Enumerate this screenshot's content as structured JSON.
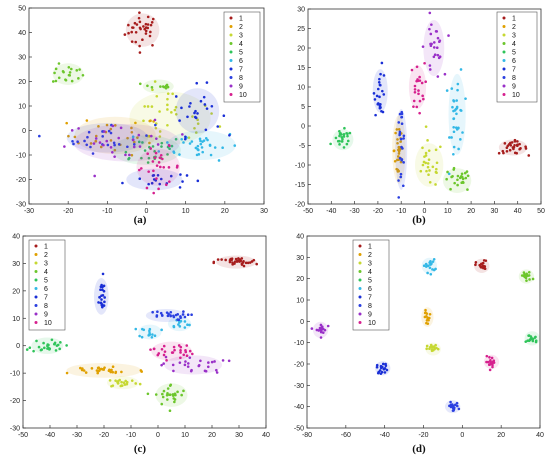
{
  "colors": {
    "1": "#a61c1c",
    "2": "#e0a000",
    "3": "#c6d832",
    "4": "#6cc62c",
    "5": "#2fc45a",
    "6": "#33b8e6",
    "7": "#1a2fd6",
    "8": "#2a3fe0",
    "9": "#9930c8",
    "10": "#d6208e"
  },
  "chart_data": [
    {
      "type": "scatter",
      "caption": "(a)",
      "xlim": [
        -30,
        30
      ],
      "ylim": [
        -30,
        50
      ],
      "xticks": [
        "-30",
        "-20",
        "-10",
        "0",
        "10",
        "20",
        "30"
      ],
      "yticks": [
        "-30",
        "-20",
        "-10",
        "0",
        "10",
        "20",
        "30",
        "40",
        "50"
      ],
      "legend": [
        "1",
        "2",
        "3",
        "4",
        "5",
        "6",
        "7",
        "8",
        "9",
        "10"
      ],
      "legend_position": "top-right",
      "series": [
        {
          "name": "1",
          "clusters": [
            {
              "cx": -1,
              "cy": 41,
              "sx": 2.2,
              "sy": 3.5,
              "n": 34
            }
          ]
        },
        {
          "name": "2",
          "clusters": [
            {
              "cx": -8,
              "cy": -2,
              "sx": 6,
              "sy": 4,
              "n": 30
            }
          ]
        },
        {
          "name": "3",
          "clusters": [
            {
              "cx": 6,
              "cy": 5,
              "sx": 6,
              "sy": 6,
              "n": 32
            }
          ]
        },
        {
          "name": "4",
          "clusters": [
            {
              "cx": -20,
              "cy": 23,
              "sx": 2,
              "sy": 2,
              "n": 20
            },
            {
              "cx": 3,
              "cy": 18,
              "sx": 2,
              "sy": 1,
              "n": 10
            }
          ]
        },
        {
          "name": "5",
          "clusters": [
            {
              "cx": 0,
              "cy": -8,
              "sx": 5,
              "sy": 3,
              "n": 24
            }
          ]
        },
        {
          "name": "6",
          "clusters": [
            {
              "cx": 14,
              "cy": -6,
              "sx": 5,
              "sy": 3,
              "n": 34
            }
          ]
        },
        {
          "name": "7",
          "clusters": [
            {
              "cx": 13,
              "cy": 8,
              "sx": 3,
              "sy": 5,
              "n": 24
            },
            {
              "cx": 2,
              "cy": -20,
              "sx": 4,
              "sy": 2,
              "n": 18
            }
          ]
        },
        {
          "name": "8",
          "clusters": [
            {
              "cx": -10,
              "cy": -3,
              "sx": 6,
              "sy": 3,
              "n": 26
            }
          ]
        },
        {
          "name": "9",
          "clusters": [
            {
              "cx": -5,
              "cy": -5,
              "sx": 8,
              "sy": 4,
              "n": 28
            }
          ]
        },
        {
          "name": "10",
          "clusters": [
            {
              "cx": 3,
              "cy": -15,
              "sx": 3,
              "sy": 4,
              "n": 26
            }
          ]
        }
      ]
    },
    {
      "type": "scatter",
      "caption": "(b)",
      "xlim": [
        -50,
        50
      ],
      "ylim": [
        -20,
        30
      ],
      "xticks": [
        "-50",
        "-40",
        "-30",
        "-20",
        "-10",
        "0",
        "10",
        "20",
        "30",
        "40",
        "50"
      ],
      "yticks": [
        "-20",
        "-15",
        "-10",
        "-5",
        "0",
        "5",
        "10",
        "15",
        "20",
        "25",
        "30"
      ],
      "legend": [
        "1",
        "2",
        "3",
        "4",
        "5",
        "6",
        "7",
        "8",
        "9",
        "10"
      ],
      "legend_position": "top-right",
      "series": [
        {
          "name": "1",
          "clusters": [
            {
              "cx": 38,
              "cy": -5.5,
              "sx": 3,
              "sy": 0.8,
              "n": 30
            }
          ]
        },
        {
          "name": "2",
          "clusters": [
            {
              "cx": -11,
              "cy": -6,
              "sx": 1,
              "sy": 5,
              "n": 30
            }
          ]
        },
        {
          "name": "3",
          "clusters": [
            {
              "cx": 2,
              "cy": -10,
              "sx": 3,
              "sy": 3,
              "n": 26
            }
          ]
        },
        {
          "name": "4",
          "clusters": [
            {
              "cx": 14,
              "cy": -14,
              "sx": 3,
              "sy": 1.5,
              "n": 24
            }
          ]
        },
        {
          "name": "5",
          "clusters": [
            {
              "cx": -35,
              "cy": -3.5,
              "sx": 2,
              "sy": 1.2,
              "n": 24
            }
          ]
        },
        {
          "name": "6",
          "clusters": [
            {
              "cx": 14,
              "cy": 3,
              "sx": 1.5,
              "sy": 6,
              "n": 34
            }
          ]
        },
        {
          "name": "7",
          "clusters": [
            {
              "cx": -19,
              "cy": 9,
              "sx": 1.2,
              "sy": 3,
              "n": 24
            }
          ]
        },
        {
          "name": "8",
          "clusters": [
            {
              "cx": -10,
              "cy": -6,
              "sx": 0.8,
              "sy": 6,
              "n": 26
            }
          ]
        },
        {
          "name": "9",
          "clusters": [
            {
              "cx": 4,
              "cy": 20,
              "sx": 2,
              "sy": 4,
              "n": 26
            }
          ]
        },
        {
          "name": "10",
          "clusters": [
            {
              "cx": -3,
              "cy": 10,
              "sx": 1.5,
              "sy": 3,
              "n": 22
            }
          ]
        }
      ]
    },
    {
      "type": "scatter",
      "caption": "(c)",
      "xlim": [
        -50,
        40
      ],
      "ylim": [
        -30,
        40
      ],
      "xticks": [
        "-50",
        "-40",
        "-30",
        "-20",
        "-10",
        "0",
        "10",
        "20",
        "30",
        "40"
      ],
      "yticks": [
        "-30",
        "-20",
        "-10",
        "0",
        "10",
        "20",
        "30",
        "40"
      ],
      "legend": [
        "1",
        "2",
        "3",
        "4",
        "5",
        "6",
        "7",
        "8",
        "9",
        "10"
      ],
      "legend_position": "top-left",
      "series": [
        {
          "name": "1",
          "clusters": [
            {
              "cx": 29,
              "cy": 30.5,
              "sx": 4,
              "sy": 0.8,
              "n": 34
            }
          ]
        },
        {
          "name": "2",
          "clusters": [
            {
              "cx": -20,
              "cy": -9,
              "sx": 8,
              "sy": 1,
              "n": 30
            }
          ]
        },
        {
          "name": "3",
          "clusters": [
            {
              "cx": -13,
              "cy": -13.5,
              "sx": 3,
              "sy": 0.8,
              "n": 22
            }
          ]
        },
        {
          "name": "4",
          "clusters": [
            {
              "cx": 5,
              "cy": -18,
              "sx": 3,
              "sy": 2,
              "n": 26
            }
          ]
        },
        {
          "name": "5",
          "clusters": [
            {
              "cx": -41,
              "cy": 0,
              "sx": 3,
              "sy": 1.2,
              "n": 26
            }
          ]
        },
        {
          "name": "6",
          "clusters": [
            {
              "cx": -3,
              "cy": 5,
              "sx": 2,
              "sy": 1,
              "n": 14
            },
            {
              "cx": 8,
              "cy": 8,
              "sx": 2,
              "sy": 1,
              "n": 12
            }
          ]
        },
        {
          "name": "7",
          "clusters": [
            {
              "cx": -21,
              "cy": 18,
              "sx": 1,
              "sy": 3.5,
              "n": 22
            }
          ]
        },
        {
          "name": "8",
          "clusters": [
            {
              "cx": 3,
              "cy": 11,
              "sx": 4,
              "sy": 0.8,
              "n": 26
            }
          ]
        },
        {
          "name": "9",
          "clusters": [
            {
              "cx": 13,
              "cy": -7,
              "sx": 6,
              "sy": 1.5,
              "n": 26
            }
          ]
        },
        {
          "name": "10",
          "clusters": [
            {
              "cx": 5,
              "cy": -2,
              "sx": 4,
              "sy": 1.5,
              "n": 26
            }
          ]
        }
      ]
    },
    {
      "type": "scatter",
      "caption": "(d)",
      "xlim": [
        -80,
        40
      ],
      "ylim": [
        -50,
        40
      ],
      "xticks": [
        "-80",
        "-60",
        "-40",
        "-20",
        "0",
        "20",
        "40"
      ],
      "yticks": [
        "-50",
        "-40",
        "-30",
        "-20",
        "-10",
        "0",
        "10",
        "20",
        "30",
        "40"
      ],
      "legend": [
        "1",
        "2",
        "3",
        "4",
        "5",
        "6",
        "7",
        "8",
        "9",
        "10"
      ],
      "legend_position": "top-left",
      "series": [
        {
          "name": "1",
          "clusters": [
            {
              "cx": 10,
              "cy": 26,
              "sx": 1.5,
              "sy": 1.2,
              "n": 18
            }
          ]
        },
        {
          "name": "2",
          "clusters": [
            {
              "cx": -18,
              "cy": 2,
              "sx": 1,
              "sy": 2,
              "n": 14
            }
          ]
        },
        {
          "name": "3",
          "clusters": [
            {
              "cx": -15,
              "cy": -13,
              "sx": 1.5,
              "sy": 1,
              "n": 18
            }
          ]
        },
        {
          "name": "4",
          "clusters": [
            {
              "cx": 33,
              "cy": 21,
              "sx": 1.5,
              "sy": 1.2,
              "n": 18
            }
          ]
        },
        {
          "name": "5",
          "clusters": [
            {
              "cx": 36,
              "cy": -8,
              "sx": 1.5,
              "sy": 1.2,
              "n": 18
            }
          ]
        },
        {
          "name": "6",
          "clusters": [
            {
              "cx": -17,
              "cy": 26,
              "sx": 1.5,
              "sy": 1.5,
              "n": 18
            }
          ]
        },
        {
          "name": "7",
          "clusters": [
            {
              "cx": -41,
              "cy": -22,
              "sx": 1.5,
              "sy": 1.2,
              "n": 18
            }
          ]
        },
        {
          "name": "8",
          "clusters": [
            {
              "cx": -5,
              "cy": -40,
              "sx": 1.5,
              "sy": 1,
              "n": 18
            }
          ]
        },
        {
          "name": "9",
          "clusters": [
            {
              "cx": -73,
              "cy": -4,
              "sx": 1.5,
              "sy": 1.5,
              "n": 18
            }
          ]
        },
        {
          "name": "10",
          "clusters": [
            {
              "cx": 15,
              "cy": -19,
              "sx": 1.5,
              "sy": 1.2,
              "n": 18
            }
          ]
        }
      ]
    }
  ]
}
